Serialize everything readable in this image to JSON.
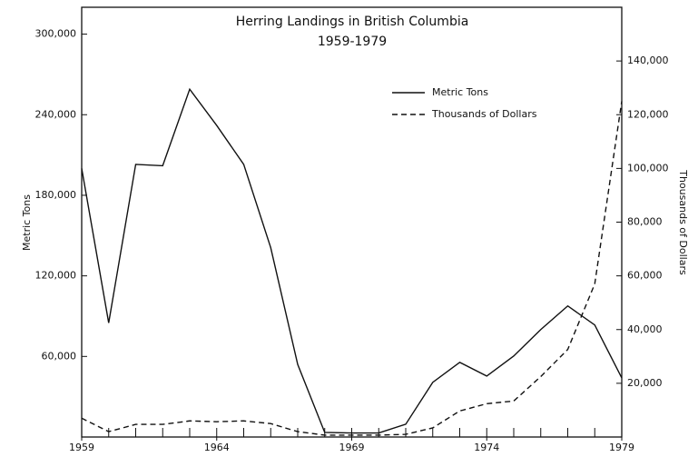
{
  "chart_data": {
    "type": "line",
    "title": "Herring Landings in British Columbia",
    "subtitle": "1959-1979",
    "y_label": "Metric Tons",
    "y2_label": "Thousands of Dollars",
    "x": [
      1959,
      1960,
      1961,
      1962,
      1963,
      1964,
      1965,
      1966,
      1967,
      1968,
      1969,
      1970,
      1971,
      1972,
      1973,
      1974,
      1975,
      1976,
      1977,
      1978,
      1979
    ],
    "xlim": [
      1959,
      1979
    ],
    "xticks": [
      1959,
      1964,
      1969,
      1974,
      1979
    ],
    "ylim": [
      0,
      320000
    ],
    "yticks": [
      {
        "value": 60000,
        "label": "60,000"
      },
      {
        "value": 120000,
        "label": "120,000"
      },
      {
        "value": 180000,
        "label": "180,000"
      },
      {
        "value": 240000,
        "label": "240,000"
      },
      {
        "value": 300000,
        "label": "300,000"
      }
    ],
    "y2lim": [
      0,
      160000
    ],
    "y2ticks": [
      {
        "value": 20000,
        "label": "20,000"
      },
      {
        "value": 40000,
        "label": "40,000"
      },
      {
        "value": 60000,
        "label": "60,000"
      },
      {
        "value": 80000,
        "label": "80,000"
      },
      {
        "value": 100000,
        "label": "100,000"
      },
      {
        "value": 120000,
        "label": "120,000"
      },
      {
        "value": 140000,
        "label": "140,000"
      }
    ],
    "series": [
      {
        "name": "Metric Tons",
        "color": "#111111",
        "style": "solid",
        "values": [
          200000,
          85000,
          203000,
          202000,
          259000,
          232000,
          203000,
          141000,
          54000,
          3400,
          3000,
          3000,
          9500,
          40700,
          55600,
          45400,
          60300,
          80000,
          97600,
          83400,
          44000
        ]
      },
      {
        "name": "Thousands of Dollars",
        "color": "#111111",
        "style": "dashed",
        "axis": "y2",
        "values": [
          7000,
          2000,
          4700,
          4700,
          6000,
          5700,
          6000,
          5000,
          2000,
          700,
          700,
          700,
          1000,
          3400,
          9700,
          12400,
          13400,
          22500,
          32600,
          57000,
          125000
        ]
      }
    ]
  }
}
